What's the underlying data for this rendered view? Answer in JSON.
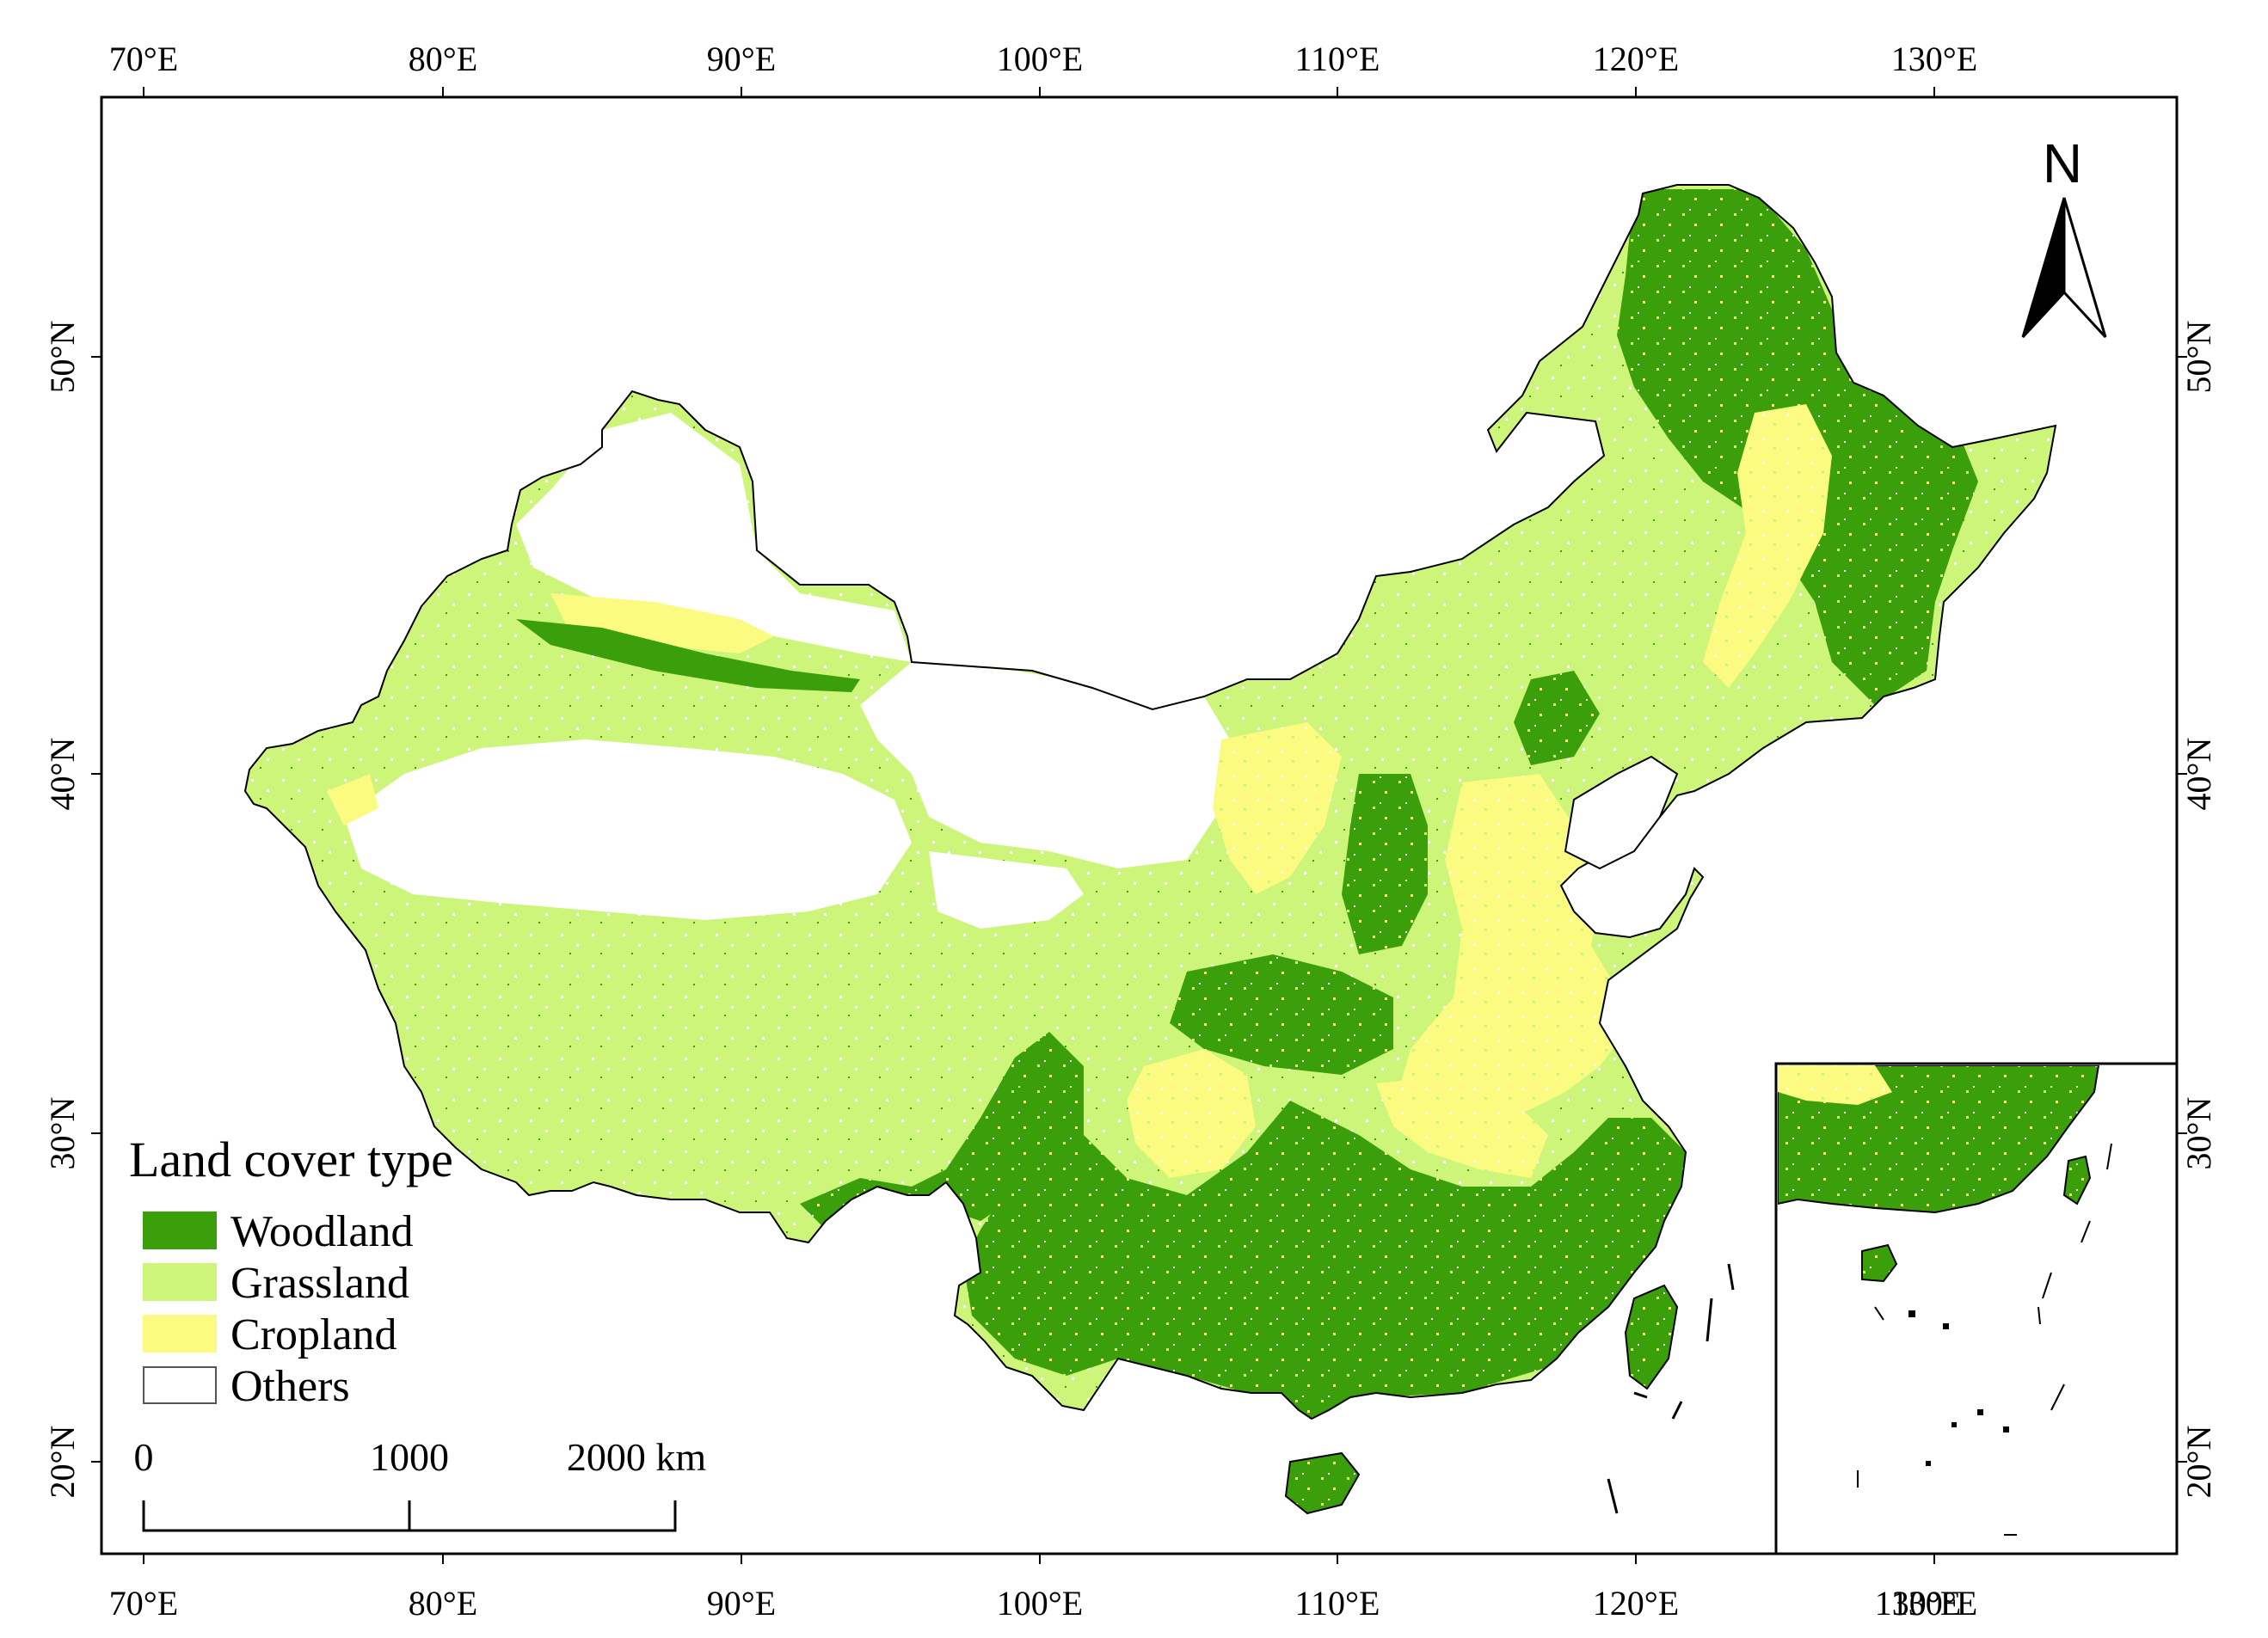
{
  "map": {
    "colors": {
      "woodland": "#3a9f0a",
      "grassland": "#ccf57a",
      "cropland": "#fbfb82",
      "others": "#ffffff",
      "frame": "#000000"
    },
    "axes": {
      "top_lon_labels": [
        "70°E",
        "80°E",
        "90°E",
        "100°E",
        "110°E",
        "120°E",
        "130°E"
      ],
      "bottom_lon_labels": [
        "70°E",
        "80°E",
        "90°E",
        "100°E",
        "110°E",
        "120°E",
        "130°E"
      ],
      "left_lat_labels": [
        "50°N",
        "40°N",
        "30°N",
        "20°N"
      ],
      "right_lat_labels": [
        "50°N",
        "40°N",
        "30°N",
        "20°N"
      ],
      "inset_lon_label": "130°E"
    },
    "legend": {
      "title": "Land cover type",
      "items": [
        {
          "label": "Woodland",
          "color": "#3a9f0a"
        },
        {
          "label": "Grassland",
          "color": "#ccf57a"
        },
        {
          "label": "Cropland",
          "color": "#fbfb82"
        },
        {
          "label": "Others",
          "color": "#ffffff"
        }
      ]
    },
    "scale_bar": {
      "labels": [
        "0",
        "1000",
        "2000 km"
      ]
    },
    "north_arrow": {
      "label": "N"
    }
  }
}
